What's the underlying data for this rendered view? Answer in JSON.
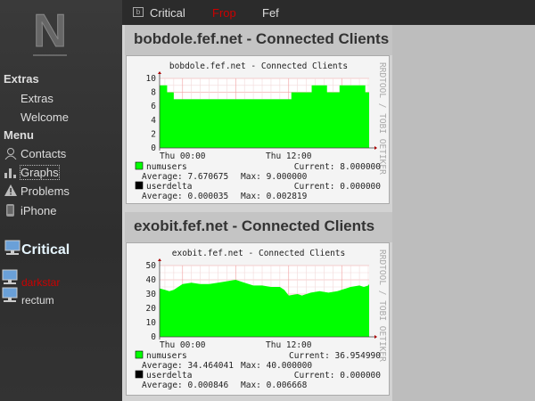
{
  "sidebar": {
    "logo_letter": "N",
    "sections": [
      {
        "label": "Extras",
        "items": [
          "Extras",
          "Welcome"
        ]
      },
      {
        "label": "Menu",
        "items": [
          "Contacts",
          "Graphs",
          "Problems",
          "iPhone"
        ]
      }
    ],
    "critical": {
      "label": "Critical",
      "hosts": [
        {
          "name": "darkstar",
          "color": "#cc0000"
        },
        {
          "name": "rectum",
          "color": "#dddddd"
        }
      ]
    }
  },
  "topbar": {
    "tabs": [
      {
        "label": "Critical",
        "icon": "tab-icon",
        "color": "#dddddd"
      },
      {
        "label": "Frop",
        "color": "#cc0000"
      },
      {
        "label": "Fef",
        "color": "#dddddd"
      }
    ]
  },
  "graphs": [
    {
      "header": "bobdole.fef.net - Connected Clients",
      "chart_data": {
        "type": "area",
        "title": "bobdole.fef.net - Connected Clients",
        "side_label": "RRDTOOL / TOBI OETIKER",
        "ylim": [
          0,
          10
        ],
        "yticks": [
          0,
          2,
          4,
          6,
          8,
          10
        ],
        "xticks": [
          "Thu 00:00",
          "Thu 12:00"
        ],
        "xrange": [
          "Wed 21:24",
          "Thu 21:06"
        ],
        "step": true,
        "x": [
          "Wed 21:24",
          "Wed 22:15",
          "Wed 23:00",
          "Thu 12:18",
          "Thu 14:36",
          "Thu 16:20",
          "Thu 17:45",
          "Thu 20:40",
          "Thu 21:06"
        ],
        "series": [
          {
            "name": "numusers",
            "color": "#00ff00",
            "values": [
              9,
              8,
              7,
              8,
              9,
              8,
              9,
              8,
              8
            ]
          }
        ],
        "legend": [
          {
            "name": "numusers",
            "color": "#00ff00",
            "current": "8.000000",
            "average": "7.670675",
            "max": "9.000000"
          },
          {
            "name": "userdelta",
            "color": "#000000",
            "current": "0.000000",
            "average": "0.000035",
            "max": "0.002819"
          }
        ]
      }
    },
    {
      "header": "exobit.fef.net - Connected Clients",
      "chart_data": {
        "type": "area",
        "title": "exobit.fef.net - Connected Clients",
        "side_label": "RRDTOOL / TOBI OETIKER",
        "ylim": [
          0,
          50
        ],
        "yticks": [
          0,
          10,
          20,
          30,
          40,
          50
        ],
        "xticks": [
          "Thu 00:00",
          "Thu 12:00"
        ],
        "xrange": [
          "Wed 21:24",
          "Thu 21:06"
        ],
        "step": false,
        "x": [
          "Wed 21:24",
          "Wed 22:00",
          "Wed 22:30",
          "Wed 23:00",
          "Wed 23:30",
          "Thu 00:00",
          "Thu 01:00",
          "Thu 02:00",
          "Thu 03:00",
          "Thu 04:00",
          "Thu 05:00",
          "Thu 06:00",
          "Thu 07:00",
          "Thu 08:00",
          "Thu 09:00",
          "Thu 10:00",
          "Thu 11:00",
          "Thu 11:30",
          "Thu 12:00",
          "Thu 13:00",
          "Thu 13:30",
          "Thu 14:30",
          "Thu 15:30",
          "Thu 16:30",
          "Thu 17:30",
          "Thu 18:30",
          "Thu 19:00",
          "Thu 20:00",
          "Thu 20:30",
          "Thu 21:00",
          "Thu 21:06"
        ],
        "series": [
          {
            "name": "numusers",
            "color": "#00ff00",
            "values": [
              34,
              33,
              32,
              33,
              35,
              37,
              38,
              37,
              37,
              38,
              39,
              40,
              38,
              36,
              36,
              35,
              35,
              33,
              29,
              30,
              29,
              31,
              32,
              31,
              32,
              34,
              35,
              36,
              35,
              36,
              37
            ]
          }
        ],
        "legend": [
          {
            "name": "numusers",
            "color": "#00ff00",
            "current": "36.954990",
            "average": "34.464041",
            "max": "40.000000"
          },
          {
            "name": "userdelta",
            "color": "#000000",
            "current": "0.000000",
            "average": "0.000846",
            "max": "0.006668"
          }
        ]
      }
    }
  ]
}
